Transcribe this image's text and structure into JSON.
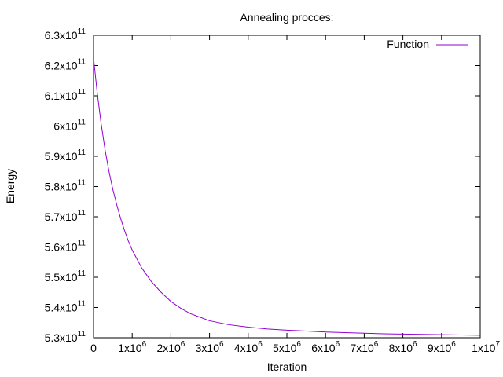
{
  "chart_data": {
    "type": "line",
    "title": "Annealing procces:",
    "xlabel": "Iteration",
    "ylabel": "Energy",
    "xlim": [
      0,
      10000000
    ],
    "ylim": [
      530000000000,
      630000000000
    ],
    "grid": false,
    "legend_position": "top-right",
    "x_ticks": [
      {
        "value": 0,
        "label": "0"
      },
      {
        "value": 1000000,
        "label": "1x10",
        "exp": "6"
      },
      {
        "value": 2000000,
        "label": "2x10",
        "exp": "6"
      },
      {
        "value": 3000000,
        "label": "3x10",
        "exp": "6"
      },
      {
        "value": 4000000,
        "label": "4x10",
        "exp": "6"
      },
      {
        "value": 5000000,
        "label": "5x10",
        "exp": "6"
      },
      {
        "value": 6000000,
        "label": "6x10",
        "exp": "6"
      },
      {
        "value": 7000000,
        "label": "7x10",
        "exp": "6"
      },
      {
        "value": 8000000,
        "label": "8x10",
        "exp": "6"
      },
      {
        "value": 9000000,
        "label": "9x10",
        "exp": "6"
      },
      {
        "value": 10000000,
        "label": "1x10",
        "exp": "7"
      }
    ],
    "y_ticks": [
      {
        "value": 530000000000,
        "label": "5.3x10",
        "exp": "11"
      },
      {
        "value": 540000000000,
        "label": "5.4x10",
        "exp": "11"
      },
      {
        "value": 550000000000,
        "label": "5.5x10",
        "exp": "11"
      },
      {
        "value": 560000000000,
        "label": "5.6x10",
        "exp": "11"
      },
      {
        "value": 570000000000,
        "label": "5.7x10",
        "exp": "11"
      },
      {
        "value": 580000000000,
        "label": "5.8x10",
        "exp": "11"
      },
      {
        "value": 590000000000,
        "label": "5.9x10",
        "exp": "11"
      },
      {
        "value": 600000000000,
        "label": "6x10",
        "exp": "11"
      },
      {
        "value": 610000000000,
        "label": "6.1x10",
        "exp": "11"
      },
      {
        "value": 620000000000,
        "label": "6.2x10",
        "exp": "11"
      },
      {
        "value": 630000000000,
        "label": "6.3x10",
        "exp": "11"
      }
    ],
    "series": [
      {
        "name": "Function",
        "color": "#9400d3",
        "x": [
          0,
          100000,
          200000,
          300000,
          400000,
          500000,
          600000,
          700000,
          800000,
          900000,
          1000000,
          1250000,
          1500000,
          1750000,
          2000000,
          2250000,
          2500000,
          3000000,
          3500000,
          4000000,
          4500000,
          5000000,
          5500000,
          6000000,
          6500000,
          7000000,
          7500000,
          8000000,
          8500000,
          9000000,
          9500000,
          10000000
        ],
        "y": [
          622500000000,
          610500000000,
          600500000000,
          592000000000,
          585000000000,
          579000000000,
          574000000000,
          569500000000,
          565500000000,
          562000000000,
          559000000000,
          553000000000,
          548500000000,
          545000000000,
          542000000000,
          539800000000,
          538000000000,
          535600000000,
          534300000000,
          533500000000,
          532900000000,
          532500000000,
          532200000000,
          531900000000,
          531700000000,
          531500000000,
          531300000000,
          531200000000,
          531100000000,
          531000000000,
          530900000000,
          530800000000
        ]
      }
    ]
  }
}
